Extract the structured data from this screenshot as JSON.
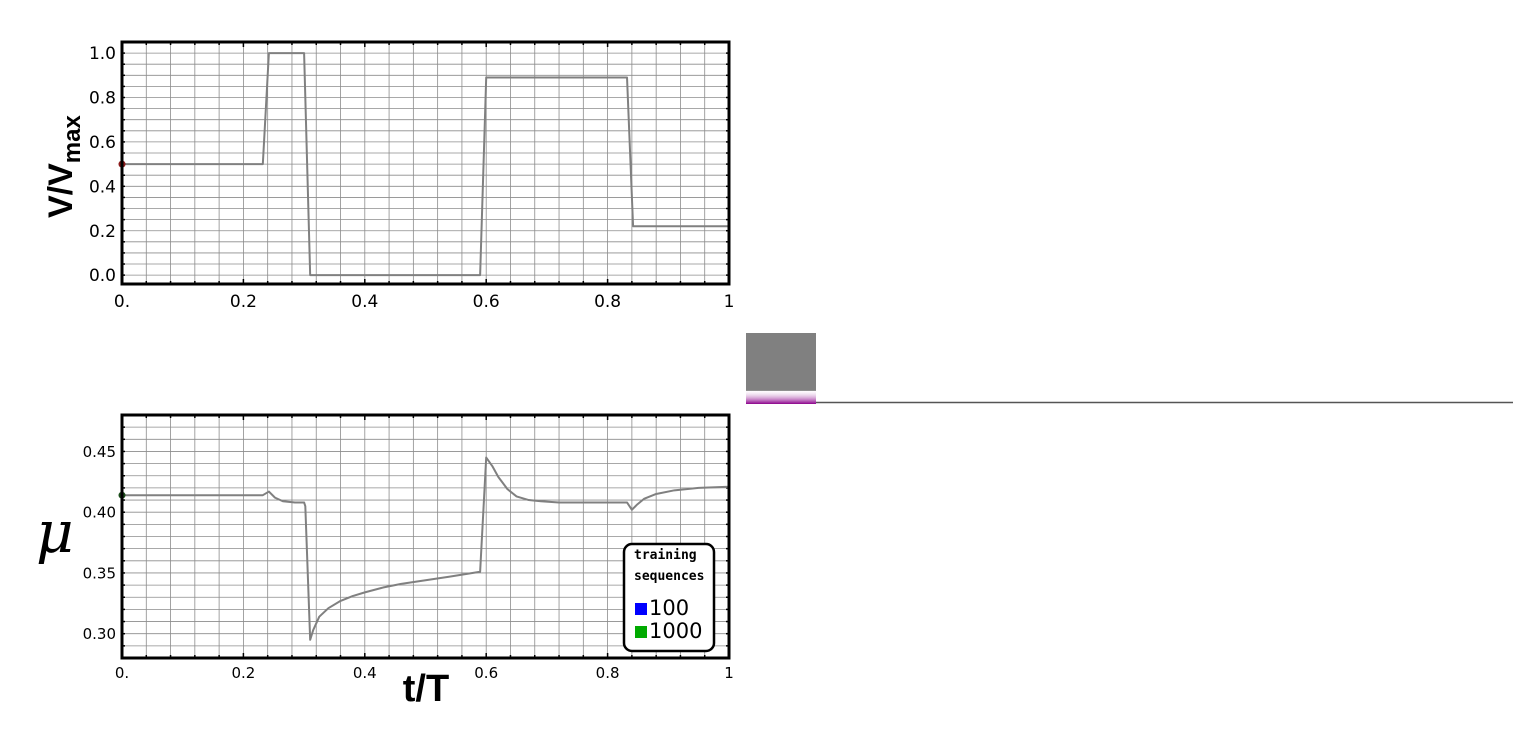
{
  "chart_data": [
    {
      "type": "line",
      "ylabel_main": "V/V",
      "ylabel_sub": "max",
      "xlim": [
        0,
        1
      ],
      "ylim": [
        -0.04,
        1.05
      ],
      "x_ticks": [
        {
          "v": 0,
          "label": "0."
        },
        {
          "v": 0.2,
          "label": "0.2"
        },
        {
          "v": 0.4,
          "label": "0.4"
        },
        {
          "v": 0.6,
          "label": "0.6"
        },
        {
          "v": 0.8,
          "label": "0.8"
        },
        {
          "v": 1,
          "label": "1"
        }
      ],
      "y_ticks": [
        {
          "v": 0,
          "label": "0.0"
        },
        {
          "v": 0.2,
          "label": "0.2"
        },
        {
          "v": 0.4,
          "label": "0.4"
        },
        {
          "v": 0.6,
          "label": "0.6"
        },
        {
          "v": 0.8,
          "label": "0.8"
        },
        {
          "v": 1.0,
          "label": "1.0"
        }
      ],
      "grid": true,
      "series": [
        {
          "color": "#808080",
          "x": [
            0,
            0.232,
            0.242,
            0.3,
            0.31,
            0.59,
            0.6,
            0.832,
            0.842,
            1.0
          ],
          "y": [
            0.5,
            0.5,
            1.0,
            1.0,
            0.0,
            0.0,
            0.89,
            0.89,
            0.22,
            0.22
          ]
        }
      ],
      "start_marker": {
        "x": 0,
        "y": 0.5,
        "color": "#8b1a1a"
      }
    },
    {
      "type": "line",
      "ylabel": "μ",
      "xlabel": "t/T",
      "xlim": [
        0,
        1
      ],
      "ylim": [
        0.28,
        0.48
      ],
      "x_ticks": [
        {
          "v": 0,
          "label": "0."
        },
        {
          "v": 0.2,
          "label": "0.2"
        },
        {
          "v": 0.4,
          "label": "0.4"
        },
        {
          "v": 0.6,
          "label": "0.6"
        },
        {
          "v": 0.8,
          "label": "0.8"
        },
        {
          "v": 1,
          "label": "1"
        }
      ],
      "y_ticks": [
        {
          "v": 0.3,
          "label": "0.30"
        },
        {
          "v": 0.35,
          "label": "0.35"
        },
        {
          "v": 0.4,
          "label": "0.40"
        },
        {
          "v": 0.45,
          "label": "0.45"
        }
      ],
      "grid": true,
      "series": [
        {
          "color": "#808080",
          "x": [
            0,
            0.232,
            0.242,
            0.252,
            0.265,
            0.285,
            0.3,
            0.302,
            0.31,
            0.315,
            0.325,
            0.34,
            0.36,
            0.38,
            0.4,
            0.43,
            0.46,
            0.5,
            0.54,
            0.59,
            0.6,
            0.61,
            0.62,
            0.635,
            0.65,
            0.67,
            0.69,
            0.72,
            0.76,
            0.8,
            0.832,
            0.84,
            0.848,
            0.86,
            0.88,
            0.91,
            0.95,
            1.0
          ],
          "y": [
            0.414,
            0.414,
            0.417,
            0.412,
            0.409,
            0.408,
            0.408,
            0.405,
            0.295,
            0.303,
            0.314,
            0.321,
            0.327,
            0.331,
            0.334,
            0.338,
            0.341,
            0.344,
            0.347,
            0.351,
            0.445,
            0.438,
            0.429,
            0.419,
            0.413,
            0.41,
            0.409,
            0.408,
            0.408,
            0.408,
            0.408,
            0.402,
            0.406,
            0.411,
            0.415,
            0.418,
            0.42,
            0.421
          ]
        }
      ],
      "start_marker": {
        "x": 0,
        "y": 0.414,
        "color": "#1a4d1a"
      },
      "legend": {
        "title_lines": [
          "training",
          "sequences"
        ],
        "placement": "lower-right",
        "entries": [
          {
            "label": "100",
            "color": "#0000ff"
          },
          {
            "label": "1000",
            "color": "#00aa00"
          }
        ]
      }
    }
  ],
  "inset": {
    "bar_color": "#808080",
    "band_color": "#8b008b",
    "line_color": "#555555"
  }
}
